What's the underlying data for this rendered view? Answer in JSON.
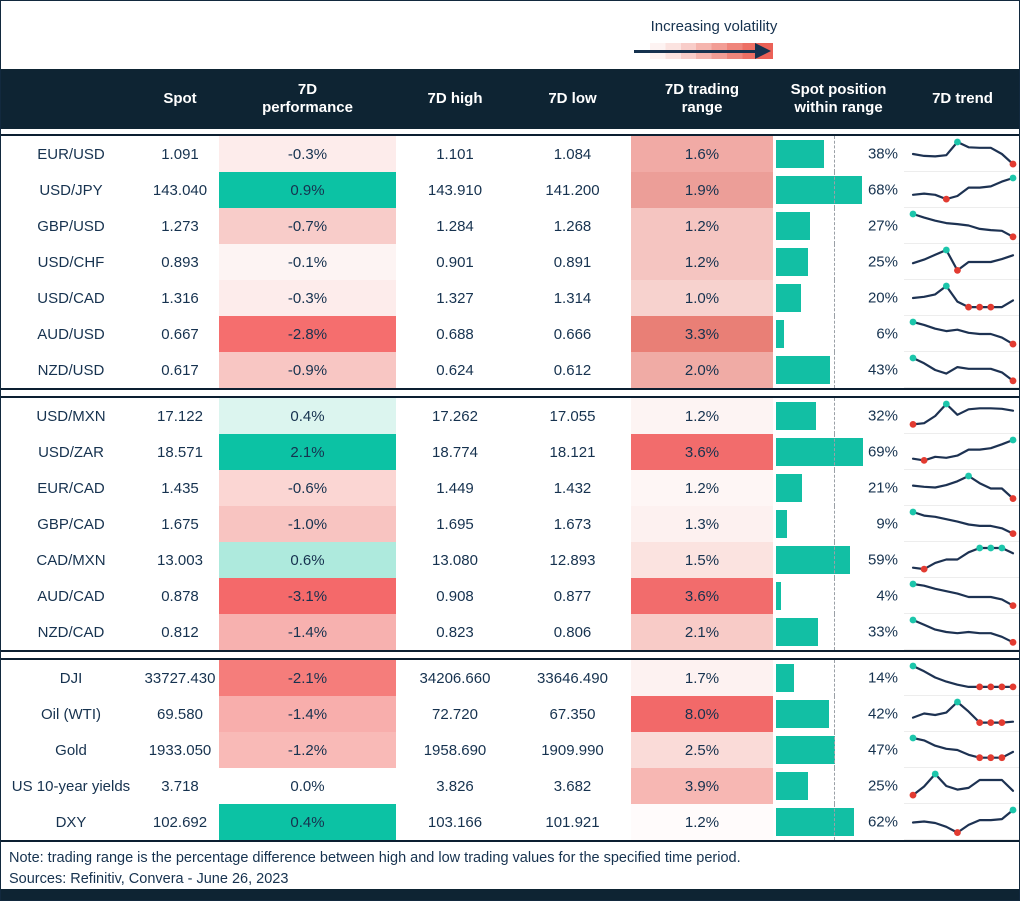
{
  "volatility_legend": {
    "label": "Increasing volatility"
  },
  "chart_data": {
    "type": "table",
    "title": "7-day FX and market volatility overview",
    "columns": [
      "Spot",
      "7D performance",
      "7D high",
      "7D low",
      "7D trading range",
      "Spot position within range",
      "7D trend"
    ],
    "legend_note": "Trading-range cell shading deepens with increasing volatility; sparkline teal dot = 7D high point, red dot = 7D low point; dashed guide marks mid-range",
    "sections": [
      {
        "rows": [
          {
            "name": "EUR/USD",
            "spot": "1.091",
            "perf": "-0.3%",
            "perf_bg": "#fdeceb",
            "high": "1.101",
            "low": "1.084",
            "range": "1.6%",
            "range_bg": "#f1aaa5",
            "position_pct": 38,
            "trend": {
              "points": [
                0.5,
                0.42,
                0.4,
                0.45,
                1.0,
                0.78,
                0.76,
                0.76,
                0.5,
                0.08
              ],
              "high": [
                4
              ],
              "low": [
                9
              ]
            }
          },
          {
            "name": "USD/JPY",
            "spot": "143.040",
            "perf": "0.9%",
            "perf_bg": "#0cc2a4",
            "high": "143.910",
            "low": "141.200",
            "range": "1.9%",
            "range_bg": "#ec9e98",
            "position_pct": 68,
            "trend": {
              "points": [
                0.3,
                0.35,
                0.3,
                0.12,
                0.25,
                0.6,
                0.6,
                0.65,
                0.85,
                1.0
              ],
              "high": [
                9
              ],
              "low": [
                3
              ]
            }
          },
          {
            "name": "GBP/USD",
            "spot": "1.273",
            "perf": "-0.7%",
            "perf_bg": "#f8ccc9",
            "high": "1.284",
            "low": "1.268",
            "range": "1.2%",
            "range_bg": "#f5c5c1",
            "position_pct": 27,
            "trend": {
              "points": [
                1.0,
                0.85,
                0.72,
                0.62,
                0.58,
                0.52,
                0.38,
                0.33,
                0.3,
                0.05
              ],
              "high": [
                0
              ],
              "low": [
                9
              ]
            }
          },
          {
            "name": "USD/CHF",
            "spot": "0.893",
            "perf": "-0.1%",
            "perf_bg": "#fdf4f3",
            "high": "0.901",
            "low": "0.891",
            "range": "1.2%",
            "range_bg": "#f5c5c1",
            "position_pct": 25,
            "trend": {
              "points": [
                0.45,
                0.6,
                0.8,
                1.0,
                0.15,
                0.5,
                0.5,
                0.5,
                0.62,
                0.78
              ],
              "high": [
                3
              ],
              "low": [
                4
              ]
            }
          },
          {
            "name": "USD/CAD",
            "spot": "1.316",
            "perf": "-0.3%",
            "perf_bg": "#fdeceb",
            "high": "1.327",
            "low": "1.314",
            "range": "1.0%",
            "range_bg": "#f7d2ce",
            "position_pct": 20,
            "trend": {
              "points": [
                0.5,
                0.55,
                0.65,
                1.0,
                0.35,
                0.12,
                0.12,
                0.12,
                0.12,
                0.4
              ],
              "high": [
                3
              ],
              "low": [
                5,
                6,
                7
              ]
            }
          },
          {
            "name": "AUD/USD",
            "spot": "0.667",
            "perf": "-2.8%",
            "perf_bg": "#f56e6e",
            "high": "0.688",
            "low": "0.666",
            "range": "3.3%",
            "range_bg": "#e97f76",
            "position_pct": 6,
            "trend": {
              "points": [
                1.0,
                0.88,
                0.72,
                0.62,
                0.68,
                0.55,
                0.5,
                0.5,
                0.35,
                0.08
              ],
              "high": [
                0
              ],
              "low": [
                9
              ]
            }
          },
          {
            "name": "NZD/USD",
            "spot": "0.617",
            "perf": "-0.9%",
            "perf_bg": "#f8c6c3",
            "high": "0.624",
            "low": "0.612",
            "range": "2.0%",
            "range_bg": "#f0aba5",
            "position_pct": 43,
            "trend": {
              "points": [
                1.0,
                0.78,
                0.5,
                0.35,
                0.62,
                0.55,
                0.55,
                0.55,
                0.4,
                0.05
              ],
              "high": [
                0
              ],
              "low": [
                9
              ]
            }
          }
        ]
      },
      {
        "rows": [
          {
            "name": "USD/MXN",
            "spot": "17.122",
            "perf": "0.4%",
            "perf_bg": "#dcf5ef",
            "high": "17.262",
            "low": "17.055",
            "range": "1.2%",
            "range_bg": "#fdf4f3",
            "position_pct": 32,
            "trend": {
              "points": [
                0.15,
                0.2,
                0.5,
                1.0,
                0.55,
                0.78,
                0.82,
                0.82,
                0.8,
                0.72
              ],
              "high": [
                3
              ],
              "low": [
                0
              ]
            }
          },
          {
            "name": "USD/ZAR",
            "spot": "18.571",
            "perf": "2.1%",
            "perf_bg": "#0cc2a4",
            "high": "18.774",
            "low": "18.121",
            "range": "3.6%",
            "range_bg": "#f26c6c",
            "position_pct": 69,
            "trend": {
              "points": [
                0.22,
                0.15,
                0.3,
                0.26,
                0.35,
                0.6,
                0.6,
                0.66,
                0.82,
                1.0
              ],
              "high": [
                9
              ],
              "low": [
                1
              ]
            }
          },
          {
            "name": "EUR/CAD",
            "spot": "1.435",
            "perf": "-0.6%",
            "perf_bg": "#fbd6d3",
            "high": "1.449",
            "low": "1.432",
            "range": "1.2%",
            "range_bg": "#fef6f5",
            "position_pct": 21,
            "trend": {
              "points": [
                0.6,
                0.55,
                0.52,
                0.62,
                0.78,
                1.0,
                0.7,
                0.48,
                0.48,
                0.06
              ],
              "high": [
                5
              ],
              "low": [
                9
              ]
            }
          },
          {
            "name": "GBP/CAD",
            "spot": "1.675",
            "perf": "-1.0%",
            "perf_bg": "#f8c4c1",
            "high": "1.695",
            "low": "1.673",
            "range": "1.3%",
            "range_bg": "#fdf1f0",
            "position_pct": 9,
            "trend": {
              "points": [
                1.0,
                0.85,
                0.8,
                0.7,
                0.6,
                0.48,
                0.42,
                0.42,
                0.32,
                0.1
              ],
              "high": [
                0
              ],
              "low": [
                9
              ]
            }
          },
          {
            "name": "CAD/MXN",
            "spot": "13.003",
            "perf": "0.6%",
            "perf_bg": "#aeeadd",
            "high": "13.080",
            "low": "12.893",
            "range": "1.5%",
            "range_bg": "#fbe3e0",
            "position_pct": 59,
            "trend": {
              "points": [
                0.18,
                0.12,
                0.38,
                0.52,
                0.52,
                0.82,
                1.0,
                1.0,
                1.0,
                0.78
              ],
              "high": [
                6,
                7,
                8
              ],
              "low": [
                1
              ]
            }
          },
          {
            "name": "AUD/CAD",
            "spot": "0.878",
            "perf": "-3.1%",
            "perf_bg": "#f4696a",
            "high": "0.908",
            "low": "0.877",
            "range": "3.6%",
            "range_bg": "#f26c6c",
            "position_pct": 4,
            "trend": {
              "points": [
                1.0,
                0.93,
                0.8,
                0.7,
                0.6,
                0.46,
                0.46,
                0.46,
                0.36,
                0.1
              ],
              "high": [
                0
              ],
              "low": [
                9
              ]
            }
          },
          {
            "name": "NZD/CAD",
            "spot": "0.812",
            "perf": "-1.4%",
            "perf_bg": "#f7b1af",
            "high": "0.823",
            "low": "0.806",
            "range": "2.1%",
            "range_bg": "#f8cbc7",
            "position_pct": 33,
            "trend": {
              "points": [
                1.0,
                0.8,
                0.6,
                0.5,
                0.45,
                0.5,
                0.45,
                0.45,
                0.3,
                0.07
              ],
              "high": [
                0
              ],
              "low": [
                9
              ]
            }
          }
        ]
      },
      {
        "rows": [
          {
            "name": "DJI",
            "spot": "33727.430",
            "perf": "-2.1%",
            "perf_bg": "#f57d7b",
            "high": "34206.660",
            "low": "33646.490",
            "range": "1.7%",
            "range_bg": "#fdf2f1",
            "position_pct": 14,
            "trend": {
              "points": [
                1.0,
                0.78,
                0.52,
                0.35,
                0.22,
                0.13,
                0.13,
                0.13,
                0.13,
                0.13
              ],
              "high": [
                0
              ],
              "low": [
                6,
                7,
                8,
                9
              ]
            }
          },
          {
            "name": "Oil (WTI)",
            "spot": "69.580",
            "perf": "-1.4%",
            "perf_bg": "#f8aeac",
            "high": "72.720",
            "low": "67.350",
            "range": "8.0%",
            "range_bg": "#f26969",
            "position_pct": 42,
            "trend": {
              "points": [
                0.35,
                0.52,
                0.46,
                0.56,
                1.0,
                0.6,
                0.14,
                0.14,
                0.14,
                0.18
              ],
              "high": [
                4
              ],
              "low": [
                6,
                7,
                8
              ]
            }
          },
          {
            "name": "Gold",
            "spot": "1933.050",
            "perf": "-1.2%",
            "perf_bg": "#f9bab7",
            "high": "1958.690",
            "low": "1909.990",
            "range": "2.5%",
            "range_bg": "#fadbd8",
            "position_pct": 47,
            "trend": {
              "points": [
                1.0,
                0.9,
                0.68,
                0.55,
                0.5,
                0.3,
                0.18,
                0.18,
                0.18,
                0.42
              ],
              "high": [
                0
              ],
              "low": [
                6,
                7,
                8
              ]
            }
          },
          {
            "name": "US 10-year yields",
            "spot": "3.718",
            "perf": "0.0%",
            "perf_bg": "",
            "high": "3.826",
            "low": "3.682",
            "range": "3.9%",
            "range_bg": "#f7b7b3",
            "position_pct": 25,
            "trend": {
              "points": [
                0.12,
                0.48,
                1.0,
                0.5,
                0.35,
                0.42,
                0.75,
                0.75,
                0.75,
                0.3
              ],
              "high": [
                2
              ],
              "low": [
                0
              ]
            }
          },
          {
            "name": "DXY",
            "spot": "102.692",
            "perf": "0.4%",
            "perf_bg": "#0cc2a4",
            "high": "103.166",
            "low": "101.921",
            "range": "1.2%",
            "range_bg": "#fffbfb",
            "position_pct": 62,
            "trend": {
              "points": [
                0.48,
                0.52,
                0.46,
                0.3,
                0.06,
                0.38,
                0.58,
                0.58,
                0.62,
                1.0
              ],
              "high": [
                9
              ],
              "low": [
                4
              ]
            }
          }
        ]
      }
    ]
  },
  "notes": {
    "note": "Note: trading range is the percentage difference between high and low trading values for the specified time period.",
    "sources": "Sources: Refinitiv, Convera - June 26, 2023"
  },
  "colors": {
    "header_bg": "#0e2433",
    "body_text": "#16324f",
    "positive_teal": "#0cc2a4",
    "negative_red": "#f56e6e",
    "bar_teal": "#12bfa4",
    "dot_high": "#1cc6ab",
    "dot_low": "#e23b31",
    "sparkline_line": "#1d3252"
  }
}
